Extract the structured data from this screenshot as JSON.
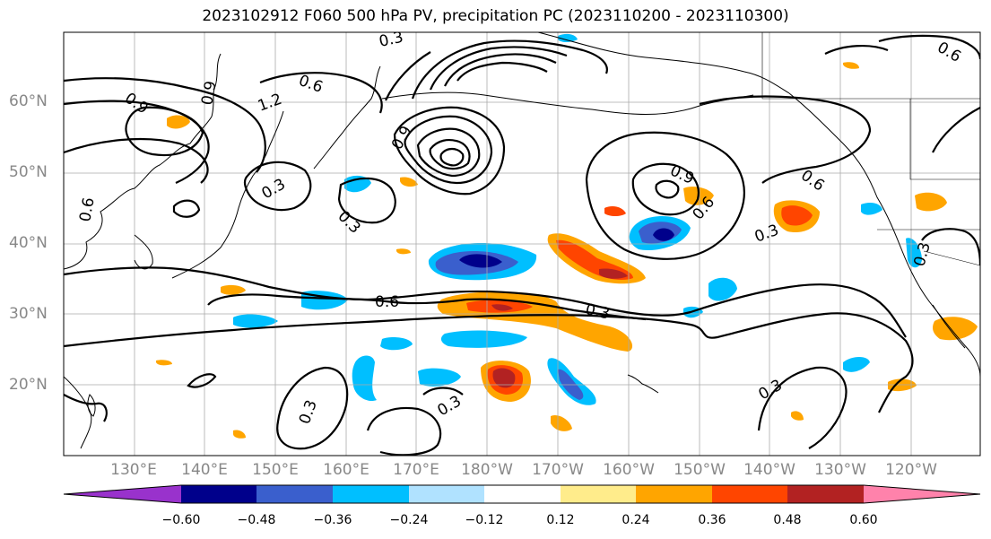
{
  "title": "2023102912 F060 500 hPa PV, precipitation PC (2023110200 - 2023110300)",
  "axes": {
    "lat_labels": [
      "60°N",
      "50°N",
      "40°N",
      "30°N",
      "20°N"
    ],
    "lon_labels": [
      "130°E",
      "140°E",
      "150°E",
      "160°E",
      "170°E",
      "180°W",
      "170°W",
      "160°W",
      "150°W",
      "140°W",
      "130°W",
      "120°W"
    ]
  },
  "colorbar": {
    "ticks": [
      "−0.60",
      "−0.48",
      "−0.36",
      "−0.24",
      "−0.12",
      "0.12",
      "0.24",
      "0.36",
      "0.48",
      "0.60"
    ],
    "colors": [
      "#9932cc",
      "#00008b",
      "#3a5fcd",
      "#00bfff",
      "#b0e2ff",
      "#ffffff",
      "#ffec8b",
      "#ffa500",
      "#ff4500",
      "#b22222",
      "#ff82ab"
    ]
  },
  "contour_labels": [
    "0.3",
    "0.6",
    "0.9",
    "1.2",
    "0.6",
    "0.9",
    "0.3",
    "0.6",
    "0.9",
    "0.6",
    "0.3",
    "0.3",
    "0.6",
    "0.9",
    "0.3",
    "0.3",
    "0.3",
    "0.3",
    "0.3",
    "0.6"
  ],
  "colors": {
    "contour": "#000000",
    "grid": "#aaaaaa",
    "coast": "#000000",
    "label": "#888888"
  }
}
